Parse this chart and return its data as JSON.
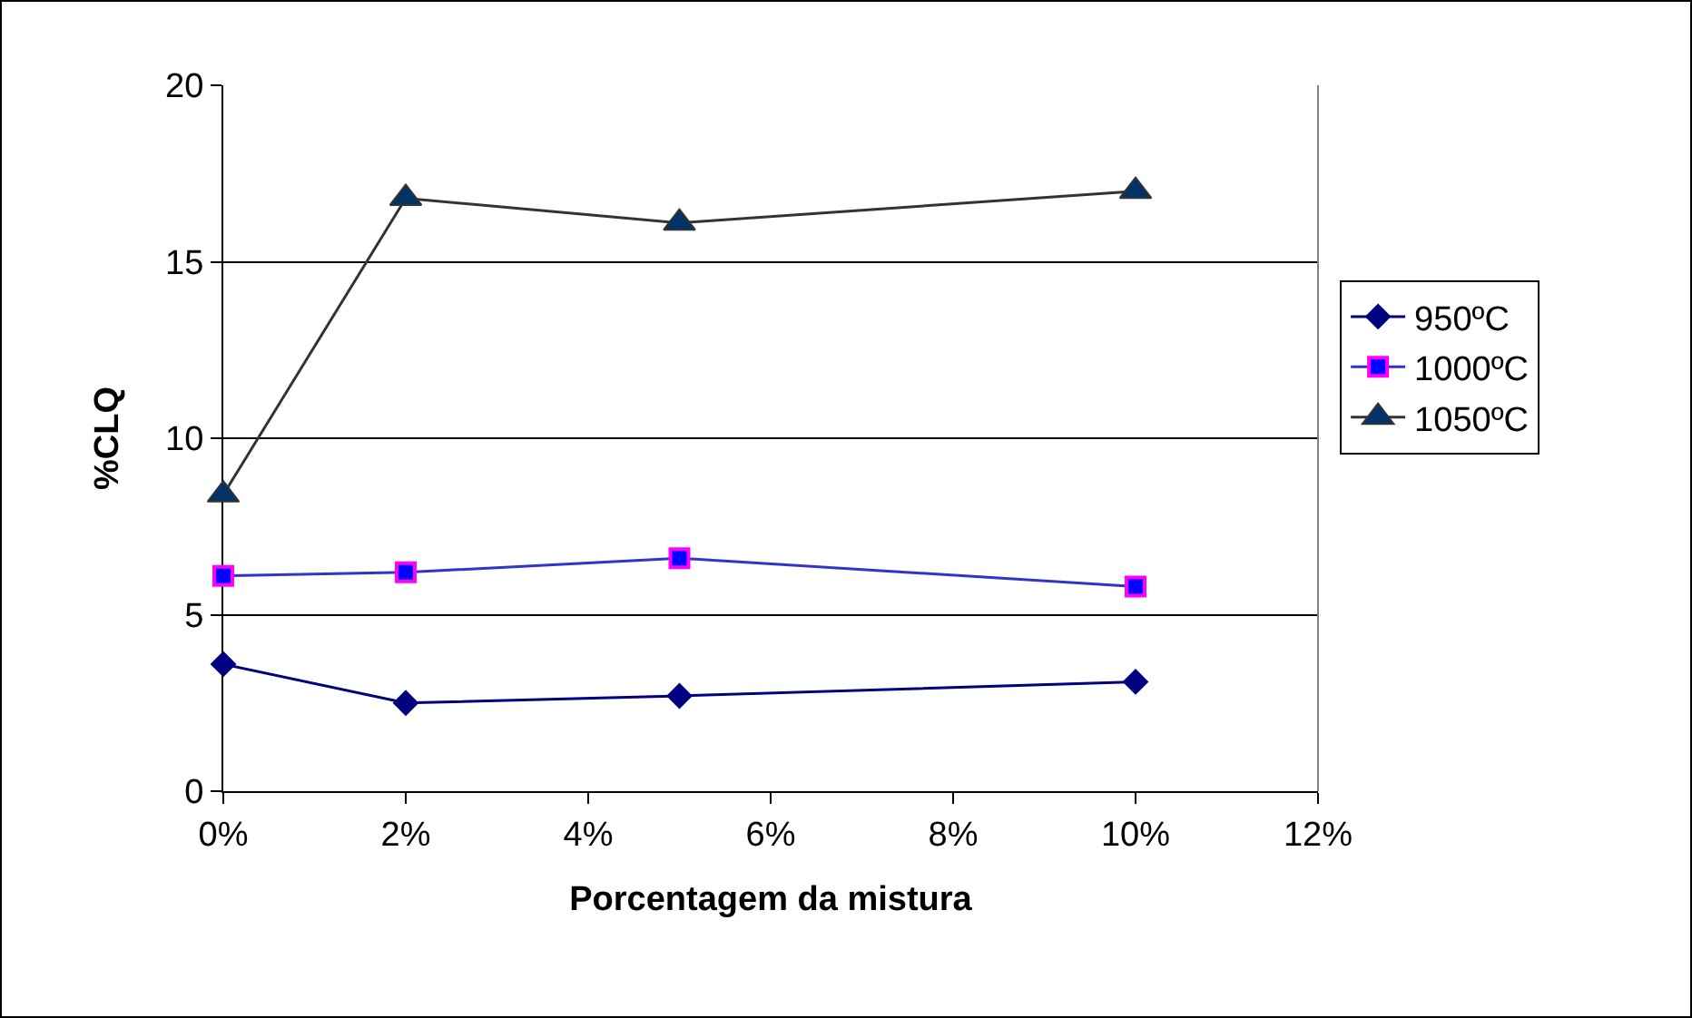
{
  "chart_data": {
    "type": "line",
    "xlabel": "Porcentagem da mistura",
    "ylabel": "%CLQ",
    "x": [
      0,
      2,
      5,
      10
    ],
    "xlim": [
      0,
      12
    ],
    "xticks": [
      {
        "value": 0,
        "label": "0%"
      },
      {
        "value": 2,
        "label": "2%"
      },
      {
        "value": 4,
        "label": "4%"
      },
      {
        "value": 6,
        "label": "6%"
      },
      {
        "value": 8,
        "label": "8%"
      },
      {
        "value": 10,
        "label": "10%"
      },
      {
        "value": 12,
        "label": "12%"
      }
    ],
    "ylim": [
      0,
      20
    ],
    "yticks": [
      0,
      5,
      10,
      15,
      20
    ],
    "grid": "y",
    "legend": "right",
    "series": [
      {
        "name": "950ºC",
        "color": "#000080",
        "marker": "diamond",
        "values": [
          3.6,
          2.5,
          2.7,
          3.1
        ]
      },
      {
        "name": "1000ºC",
        "color": "#3333cc",
        "marker": "square",
        "values": [
          6.1,
          6.2,
          6.6,
          5.8
        ]
      },
      {
        "name": "1050ºC",
        "color": "#333333",
        "marker": "triangle",
        "values": [
          8.4,
          16.8,
          16.1,
          17.0
        ]
      }
    ]
  }
}
